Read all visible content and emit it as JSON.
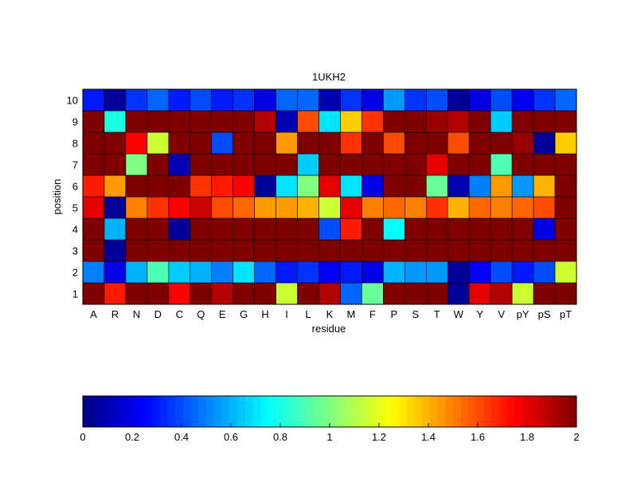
{
  "chart_data": {
    "type": "heatmap",
    "title": "1UKH2",
    "xlabel": "residue",
    "ylabel": "position",
    "x_categories": [
      "A",
      "R",
      "N",
      "D",
      "C",
      "Q",
      "E",
      "G",
      "H",
      "I",
      "L",
      "K",
      "M",
      "F",
      "P",
      "S",
      "T",
      "W",
      "Y",
      "V",
      "pY",
      "pS",
      "pT"
    ],
    "y_categories": [
      "1",
      "2",
      "3",
      "4",
      "5",
      "6",
      "7",
      "8",
      "9",
      "10"
    ],
    "values": [
      [
        2.0,
        1.7,
        2.0,
        2.0,
        1.75,
        2.0,
        1.9,
        2.0,
        2.0,
        1.15,
        2.0,
        1.9,
        0.45,
        0.95,
        2.0,
        2.0,
        2.0,
        0.05,
        1.8,
        1.9,
        1.15,
        2.0,
        2.0
      ],
      [
        0.5,
        0.2,
        0.6,
        0.9,
        0.65,
        0.6,
        0.5,
        0.7,
        0.45,
        0.3,
        0.35,
        0.25,
        0.3,
        0.2,
        0.6,
        0.55,
        0.55,
        0.05,
        0.25,
        0.4,
        0.3,
        0.4,
        1.15
      ],
      [
        2.0,
        0.05,
        2.0,
        2.0,
        2.0,
        2.0,
        2.0,
        2.0,
        2.0,
        2.0,
        2.0,
        2.0,
        2.0,
        2.0,
        2.0,
        2.0,
        2.0,
        2.0,
        2.0,
        2.0,
        2.0,
        2.0,
        2.0
      ],
      [
        2.0,
        0.6,
        2.0,
        2.0,
        0.05,
        2.0,
        2.0,
        2.0,
        2.0,
        2.0,
        2.0,
        0.4,
        1.7,
        2.0,
        0.75,
        2.0,
        2.0,
        2.0,
        2.0,
        2.0,
        2.0,
        0.2,
        2.0
      ],
      [
        1.8,
        0.05,
        1.5,
        1.65,
        1.75,
        1.85,
        1.6,
        1.55,
        1.45,
        1.45,
        1.4,
        1.15,
        1.8,
        1.5,
        1.55,
        1.5,
        1.65,
        1.4,
        1.55,
        1.5,
        1.55,
        1.6,
        2.0
      ],
      [
        1.7,
        1.45,
        2.0,
        2.0,
        2.0,
        1.65,
        1.7,
        1.75,
        0.05,
        0.7,
        1.0,
        1.8,
        0.7,
        0.2,
        2.0,
        2.0,
        0.95,
        0.1,
        0.5,
        1.45,
        0.55,
        1.4,
        2.0
      ],
      [
        2.0,
        2.0,
        1.0,
        2.0,
        0.1,
        2.0,
        2.0,
        2.0,
        2.0,
        2.0,
        0.65,
        2.0,
        2.0,
        2.0,
        2.0,
        2.0,
        1.8,
        2.0,
        2.0,
        0.9,
        2.0,
        2.0,
        2.0
      ],
      [
        2.0,
        2.0,
        1.75,
        1.15,
        2.0,
        2.0,
        0.4,
        2.0,
        2.0,
        1.45,
        2.0,
        2.0,
        1.65,
        2.0,
        1.6,
        2.0,
        2.0,
        1.6,
        2.0,
        2.0,
        1.95,
        0.05,
        1.35
      ],
      [
        2.0,
        0.8,
        2.0,
        2.0,
        2.0,
        2.0,
        2.0,
        2.0,
        1.9,
        0.1,
        1.6,
        0.7,
        1.35,
        1.65,
        2.0,
        2.0,
        1.95,
        1.9,
        2.0,
        0.65,
        2.0,
        2.0,
        2.0
      ],
      [
        0.3,
        0.05,
        0.35,
        0.45,
        0.3,
        0.4,
        0.3,
        0.35,
        0.2,
        0.45,
        0.45,
        0.1,
        0.35,
        0.2,
        0.55,
        0.35,
        0.4,
        0.05,
        0.2,
        0.4,
        0.25,
        0.35,
        0.45
      ]
    ],
    "colorbar": {
      "colormap": "jet",
      "range": [
        0,
        2
      ],
      "ticks": [
        "0",
        "0.2",
        "0.4",
        "0.6",
        "0.8",
        "1",
        "1.2",
        "1.4",
        "1.6",
        "1.8",
        "2"
      ]
    },
    "grid": false
  }
}
